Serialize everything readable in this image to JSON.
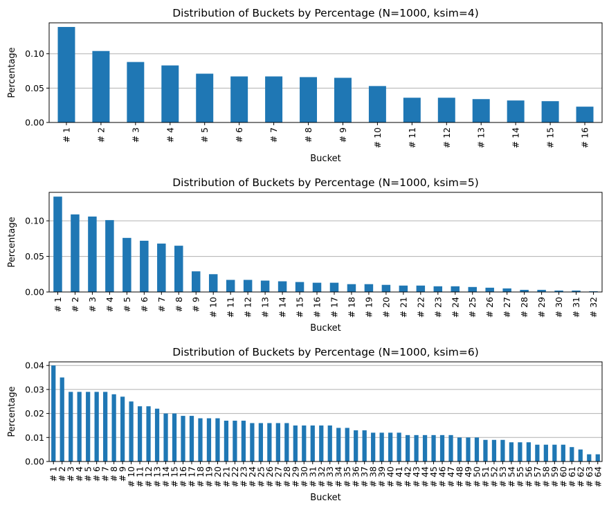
{
  "chart_data": [
    {
      "type": "bar",
      "title": "Distribution of Buckets by Percentage (N=1000, ksim=4)",
      "xlabel": "Bucket",
      "ylabel": "Percentage",
      "categories": [
        "# 1",
        "# 2",
        "# 3",
        "# 4",
        "# 5",
        "# 6",
        "# 7",
        "# 8",
        "# 9",
        "# 10",
        "# 11",
        "# 12",
        "# 13",
        "# 14",
        "# 15",
        "# 16"
      ],
      "values": [
        0.139,
        0.104,
        0.088,
        0.083,
        0.071,
        0.067,
        0.067,
        0.066,
        0.065,
        0.053,
        0.036,
        0.036,
        0.034,
        0.032,
        0.031,
        0.023
      ],
      "ylim": [
        0,
        0.145
      ],
      "yticks": [
        0.0,
        0.05,
        0.1
      ],
      "ytick_labels": [
        "0.00",
        "0.05",
        "0.10"
      ],
      "grid": "y",
      "color": "#1f77b4"
    },
    {
      "type": "bar",
      "title": "Distribution of Buckets by Percentage (N=1000, ksim=5)",
      "xlabel": "Bucket",
      "ylabel": "Percentage",
      "categories": [
        "# 1",
        "# 2",
        "# 3",
        "# 4",
        "# 5",
        "# 6",
        "# 7",
        "# 8",
        "# 9",
        "# 10",
        "# 11",
        "# 12",
        "# 13",
        "# 14",
        "# 15",
        "# 16",
        "# 17",
        "# 18",
        "# 19",
        "# 20",
        "# 21",
        "# 22",
        "# 23",
        "# 24",
        "# 25",
        "# 26",
        "# 27",
        "# 28",
        "# 29",
        "# 30",
        "# 31",
        "# 32"
      ],
      "values": [
        0.134,
        0.109,
        0.106,
        0.101,
        0.076,
        0.072,
        0.068,
        0.065,
        0.029,
        0.025,
        0.017,
        0.017,
        0.016,
        0.015,
        0.014,
        0.013,
        0.013,
        0.011,
        0.011,
        0.01,
        0.009,
        0.009,
        0.008,
        0.008,
        0.007,
        0.006,
        0.005,
        0.003,
        0.003,
        0.002,
        0.002,
        0.001
      ],
      "ylim": [
        0,
        0.14
      ],
      "yticks": [
        0.0,
        0.05,
        0.1
      ],
      "ytick_labels": [
        "0.00",
        "0.05",
        "0.10"
      ],
      "grid": "y",
      "color": "#1f77b4"
    },
    {
      "type": "bar",
      "title": "Distribution of Buckets by Percentage (N=1000, ksim=6)",
      "xlabel": "Bucket",
      "ylabel": "Percentage",
      "categories": [
        "# 1",
        "# 2",
        "# 3",
        "# 4",
        "# 5",
        "# 6",
        "# 7",
        "# 8",
        "# 9",
        "# 10",
        "# 11",
        "# 12",
        "# 13",
        "# 14",
        "# 15",
        "# 16",
        "# 17",
        "# 18",
        "# 19",
        "# 20",
        "# 21",
        "# 22",
        "# 23",
        "# 24",
        "# 25",
        "# 26",
        "# 27",
        "# 28",
        "# 29",
        "# 30",
        "# 31",
        "# 32",
        "# 33",
        "# 34",
        "# 35",
        "# 36",
        "# 37",
        "# 38",
        "# 39",
        "# 40",
        "# 41",
        "# 42",
        "# 43",
        "# 44",
        "# 45",
        "# 46",
        "# 47",
        "# 48",
        "# 49",
        "# 50",
        "# 51",
        "# 52",
        "# 53",
        "# 54",
        "# 55",
        "# 56",
        "# 57",
        "# 58",
        "# 59",
        "# 60",
        "# 61",
        "# 62",
        "# 63",
        "# 64"
      ],
      "values": [
        0.04,
        0.035,
        0.029,
        0.029,
        0.029,
        0.029,
        0.029,
        0.028,
        0.027,
        0.025,
        0.023,
        0.023,
        0.022,
        0.02,
        0.02,
        0.019,
        0.019,
        0.018,
        0.018,
        0.018,
        0.017,
        0.017,
        0.017,
        0.016,
        0.016,
        0.016,
        0.016,
        0.016,
        0.015,
        0.015,
        0.015,
        0.015,
        0.015,
        0.014,
        0.014,
        0.013,
        0.013,
        0.012,
        0.012,
        0.012,
        0.012,
        0.011,
        0.011,
        0.011,
        0.011,
        0.011,
        0.011,
        0.01,
        0.01,
        0.01,
        0.009,
        0.009,
        0.009,
        0.008,
        0.008,
        0.008,
        0.007,
        0.007,
        0.007,
        0.007,
        0.006,
        0.005,
        0.003,
        0.003
      ],
      "ylim": [
        0,
        0.0415
      ],
      "yticks": [
        0.0,
        0.01,
        0.02,
        0.03,
        0.04
      ],
      "ytick_labels": [
        "0.00",
        "0.01",
        "0.02",
        "0.03",
        "0.04"
      ],
      "grid": "y",
      "color": "#1f77b4"
    }
  ]
}
